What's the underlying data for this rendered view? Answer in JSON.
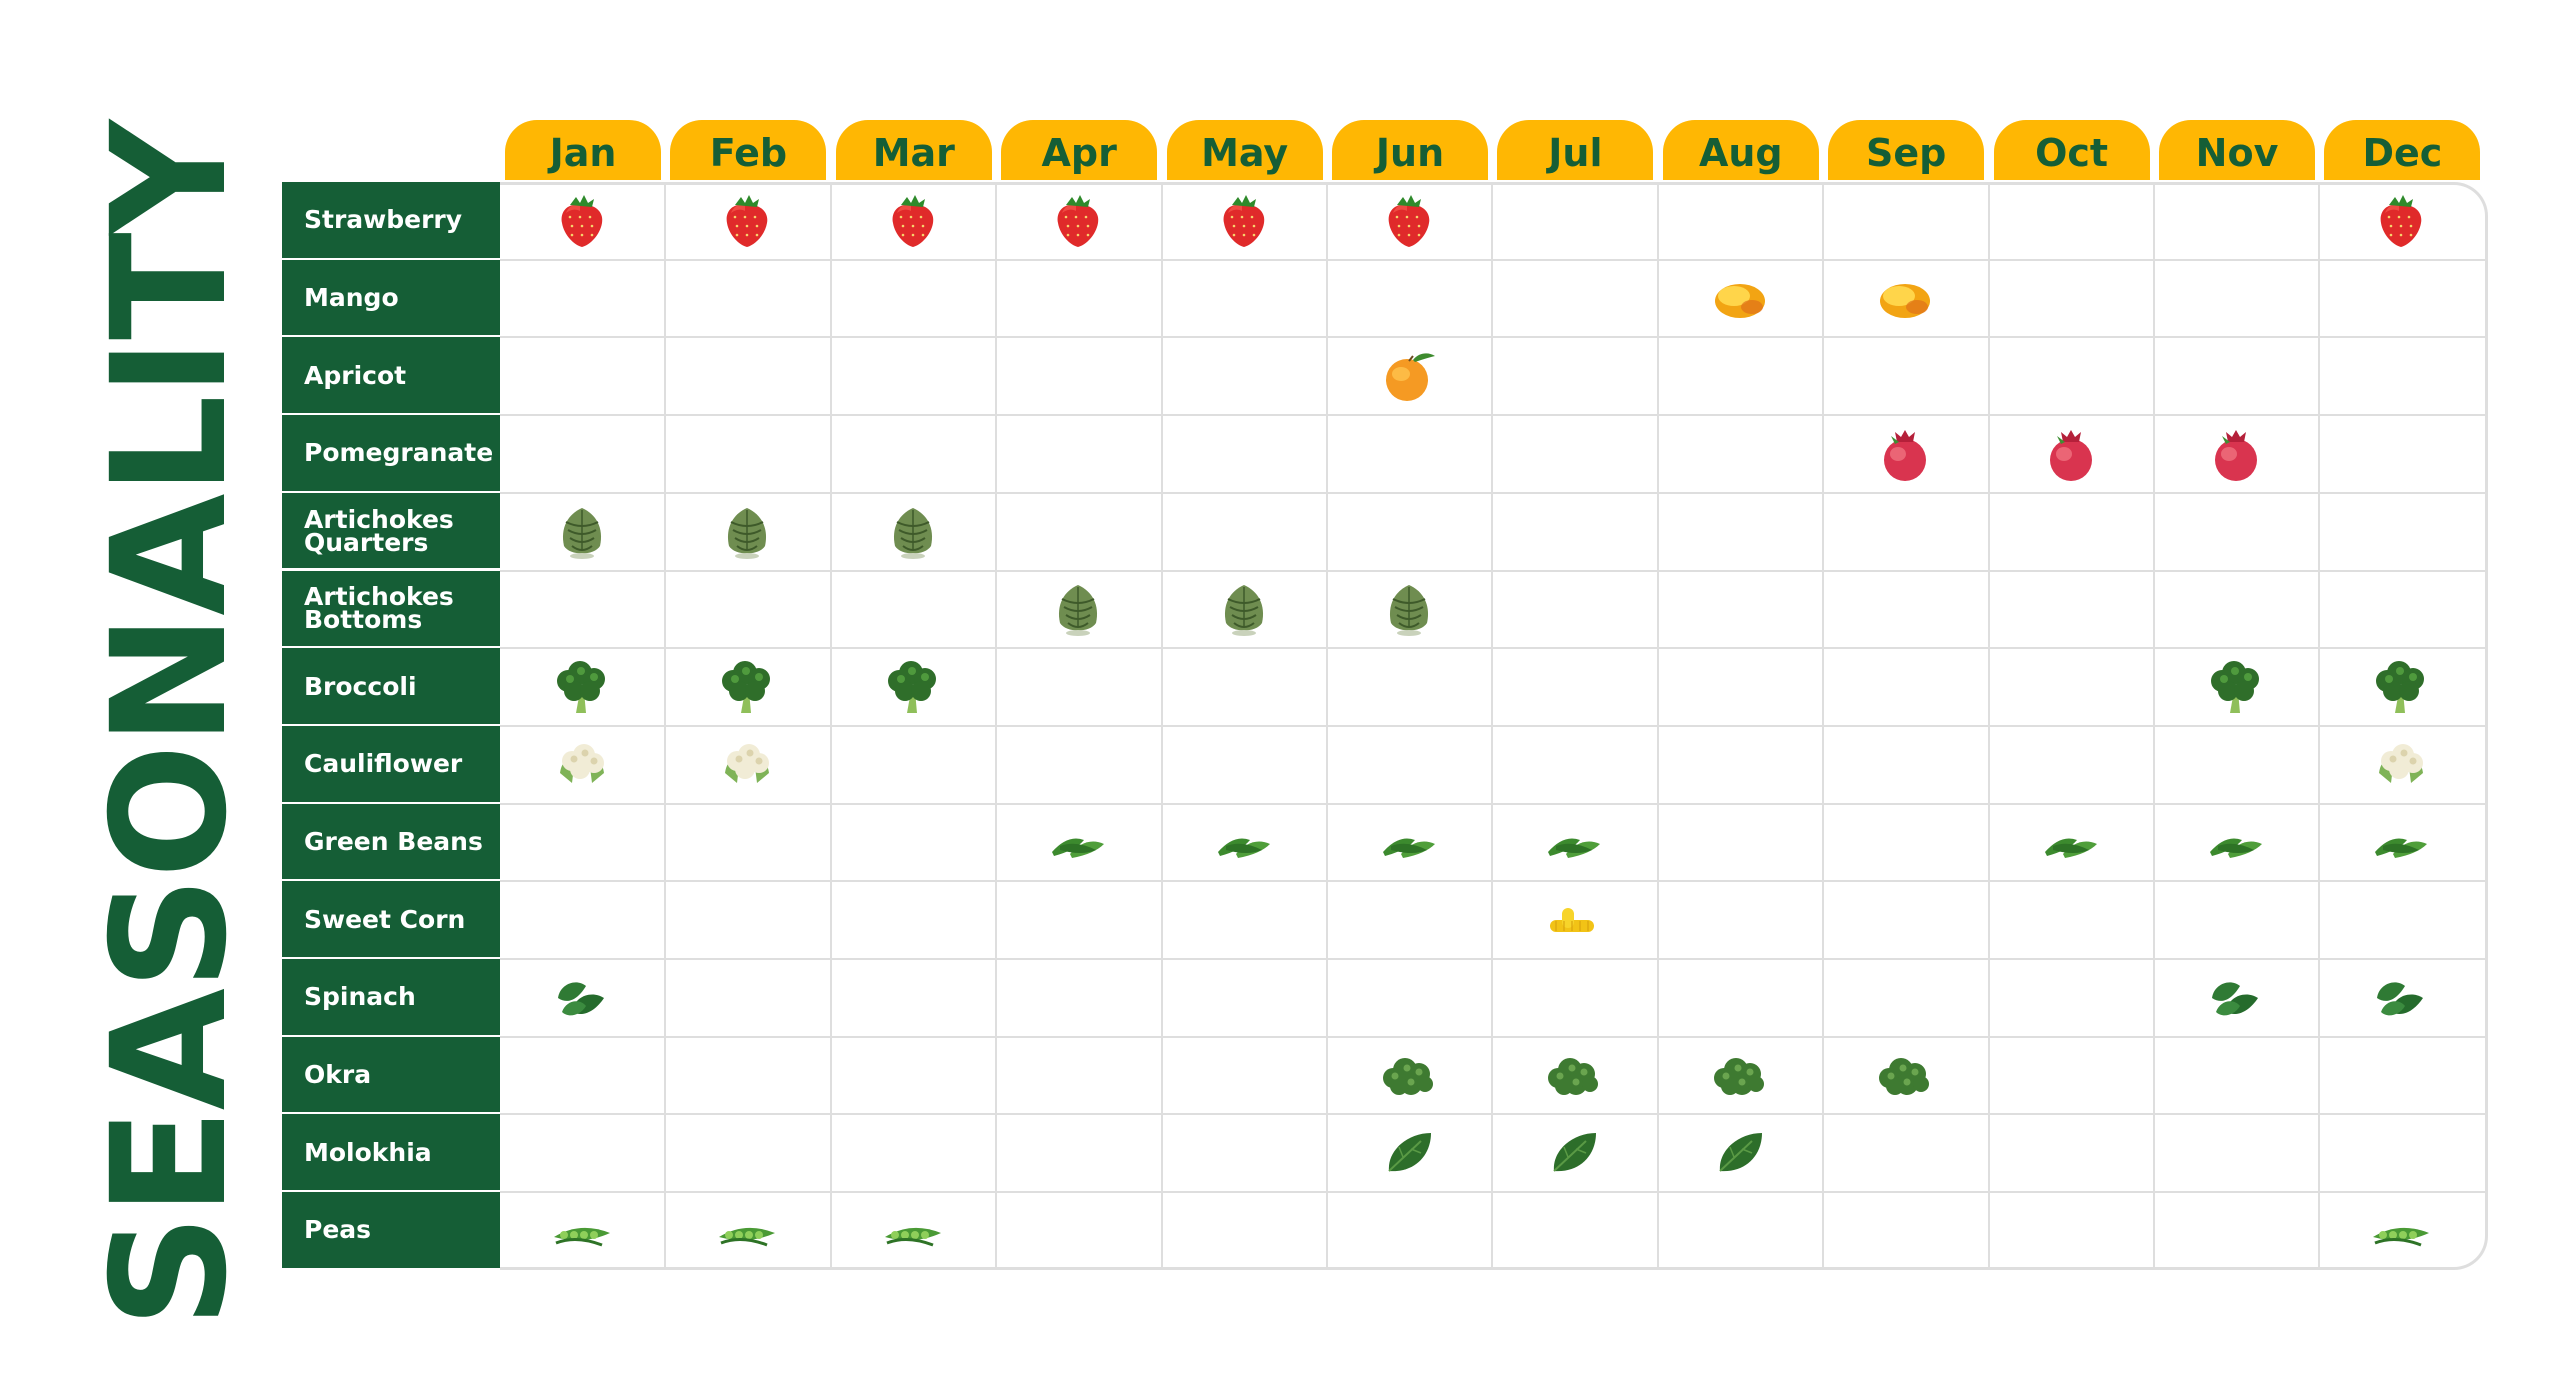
{
  "title": "SEASONALITY",
  "chart_data": {
    "type": "table",
    "months": [
      "Jan",
      "Feb",
      "Mar",
      "Apr",
      "May",
      "Jun",
      "Jul",
      "Aug",
      "Sep",
      "Oct",
      "Nov",
      "Dec"
    ],
    "rows": [
      {
        "name": "Strawberry",
        "icon": "strawberry-icon",
        "months": [
          1,
          2,
          3,
          4,
          5,
          6,
          12
        ]
      },
      {
        "name": "Mango",
        "icon": "mango-icon",
        "months": [
          8,
          9
        ]
      },
      {
        "name": "Apricot",
        "icon": "apricot-icon",
        "months": [
          6
        ]
      },
      {
        "name": "Pomegranate",
        "icon": "pomegranate-icon",
        "months": [
          9,
          10,
          11
        ]
      },
      {
        "name": "Artichokes\nQuarters",
        "icon": "artichoke-icon",
        "months": [
          1,
          2,
          3
        ]
      },
      {
        "name": "Artichokes\nBottoms",
        "icon": "artichoke-icon",
        "months": [
          4,
          5,
          6
        ]
      },
      {
        "name": "Broccoli",
        "icon": "broccoli-icon",
        "months": [
          1,
          2,
          3,
          11,
          12
        ]
      },
      {
        "name": "Cauliflower",
        "icon": "cauliflower-icon",
        "months": [
          1,
          2,
          12
        ]
      },
      {
        "name": "Green Beans",
        "icon": "green-beans-icon",
        "months": [
          4,
          5,
          6,
          7,
          10,
          11,
          12
        ]
      },
      {
        "name": "Sweet Corn",
        "icon": "sweet-corn-icon",
        "months": [
          7
        ]
      },
      {
        "name": "Spinach",
        "icon": "spinach-icon",
        "months": [
          1,
          11,
          12
        ]
      },
      {
        "name": "Okra",
        "icon": "okra-icon",
        "months": [
          6,
          7,
          8,
          9
        ]
      },
      {
        "name": "Molokhia",
        "icon": "molokhia-icon",
        "months": [
          6,
          7,
          8
        ]
      },
      {
        "name": "Peas",
        "icon": "peas-icon",
        "months": [
          1,
          2,
          3,
          12
        ]
      }
    ]
  },
  "colors": {
    "brand_green": "#155e36",
    "tab_yellow": "#ffb703",
    "grid_line": "#dedede"
  }
}
